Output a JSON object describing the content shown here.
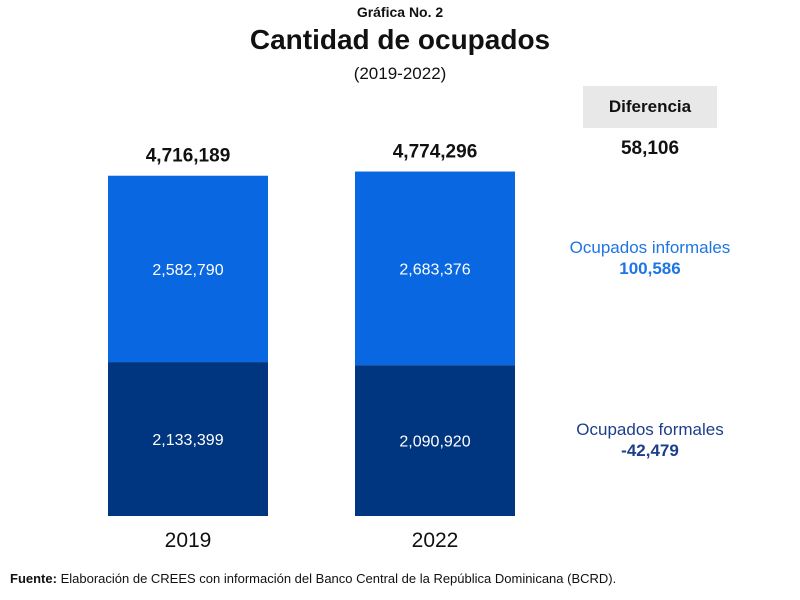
{
  "header": {
    "label": "Gráfica No. 2",
    "title": "Cantidad de ocupados",
    "subtitle": "(2019-2022)"
  },
  "chart_data": {
    "type": "bar",
    "stacked": true,
    "categories": [
      "2019",
      "2022"
    ],
    "series": [
      {
        "name": "Ocupados formales",
        "values": [
          2133399,
          2090920
        ],
        "labels": [
          "2,133,399",
          "2,090,920"
        ],
        "color": "#003580"
      },
      {
        "name": "Ocupados informales",
        "values": [
          2582790,
          2683376
        ],
        "labels": [
          "2,582,790",
          "2,683,376"
        ],
        "color": "#0A67E2"
      }
    ],
    "totals": [
      "4,716,189",
      "4,774,296"
    ],
    "grid": false
  },
  "difference": {
    "header": "Diferencia",
    "total": "58,106",
    "informal_label": "Ocupados informales",
    "informal_value": "100,586",
    "formal_label": "Ocupados formales",
    "formal_value": "-42,479"
  },
  "colors": {
    "informal_text": "#1F75E3",
    "formal_text": "#1C3F8A",
    "diff_box": "#E8E8E8"
  },
  "footer": {
    "source_label": "Fuente:",
    "source_text": " Elaboración de CREES con información del Banco Central de la República Dominicana (BCRD)."
  }
}
